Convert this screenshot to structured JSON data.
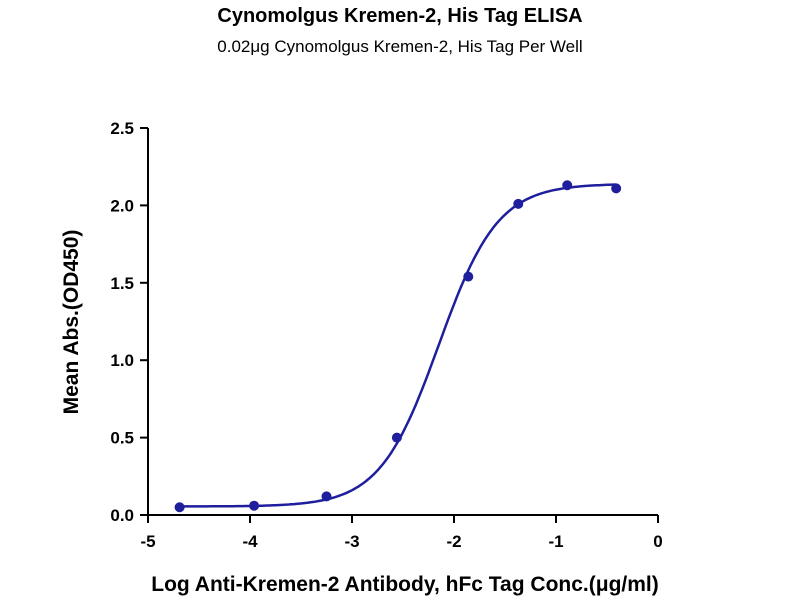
{
  "chart_data": {
    "type": "scatter",
    "title": "Cynomolgus Kremen-2, His Tag ELISA",
    "subtitle": "0.02μg Cynomolgus Kremen-2, His Tag Per Well",
    "xlabel": "Log Anti-Kremen-2 Antibody, hFc Tag Conc.(μg/ml)",
    "ylabel": "Mean Abs.(OD450)",
    "xlim": [
      -5,
      0
    ],
    "ylim": [
      0,
      2.5
    ],
    "xticks": [
      "-5",
      "-4",
      "-3",
      "-2",
      "-1",
      "0"
    ],
    "yticks": [
      "0.0",
      "0.5",
      "1.0",
      "1.5",
      "2.0",
      "2.5"
    ],
    "grid": false,
    "color": "#1f1f9e",
    "series": [
      {
        "x": [
          -4.69,
          -3.96,
          -3.25,
          -2.56,
          -1.86,
          -1.37,
          -0.89,
          -0.41
        ],
        "y": [
          0.05,
          0.06,
          0.12,
          0.5,
          1.54,
          2.01,
          2.13,
          2.11
        ]
      }
    ],
    "fit": {
      "model": "4PL",
      "bottom": 0.055,
      "top": 2.14,
      "logEC50": -2.15,
      "hill": 1.5
    }
  }
}
